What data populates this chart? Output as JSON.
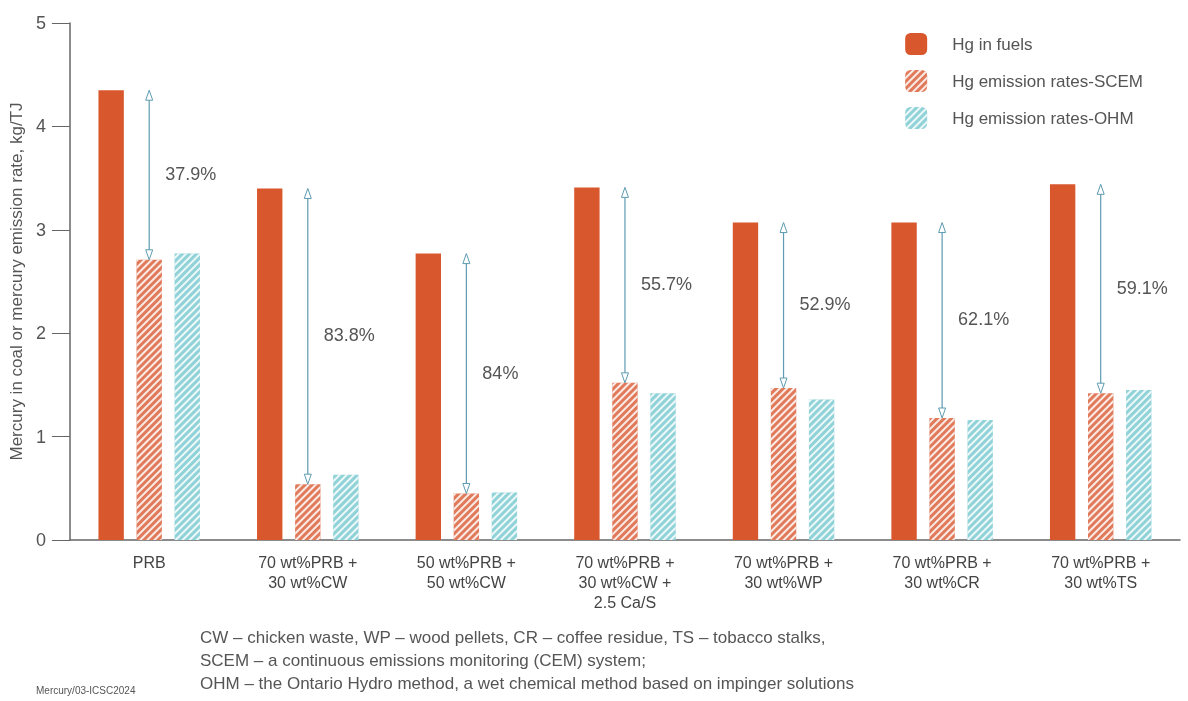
{
  "chart_data": {
    "type": "bar",
    "ylabel": "Mercury in coal or mercury emission rate, kg/TJ",
    "categories": [
      "PRB",
      "70 wt%PRB +\n30 wt%CW",
      "50 wt%PRB +\n50 wt%CW",
      "70 wt%PRB +\n30 wt%CW +\n2.5 Ca/S",
      "70 wt%PRB +\n30 wt%WP",
      "70 wt%PRB +\n30 wt%CR",
      "70 wt%PRB +\n30 wt%TS"
    ],
    "series": [
      {
        "name": "Hg in fuels",
        "color": "#d9572c",
        "values": [
          4.35,
          3.4,
          2.77,
          3.41,
          3.07,
          3.07,
          3.44
        ]
      },
      {
        "name": "Hg emission rates-SCEM",
        "color": "#e07a5a",
        "values": [
          2.71,
          0.54,
          0.45,
          1.52,
          1.47,
          1.18,
          1.42
        ]
      },
      {
        "name": "Hg emission rates-OHM",
        "color": "#8fd2d8",
        "values": [
          2.77,
          0.63,
          0.46,
          1.42,
          1.36,
          1.16,
          1.45
        ]
      }
    ],
    "ylim": [
      0,
      5
    ],
    "yticks": [
      0,
      1,
      2,
      3,
      4,
      5
    ],
    "grid": false,
    "legend": "top right",
    "annotations": [
      "37.9%",
      "83.8%",
      "84%",
      "55.7%",
      "52.9%",
      "62.1%",
      "59.1%",
      "CW – chicken waste, WP – wood pellets, CR – coffee residue, TS – tobacco stalks,",
      "SCEM – a continuous emissions monitoring (CEM) system;",
      "OHM – the Ontario Hydro method, a wet chemical method based on impinger solutions",
      "Mercury/03-ICSC2024"
    ]
  }
}
